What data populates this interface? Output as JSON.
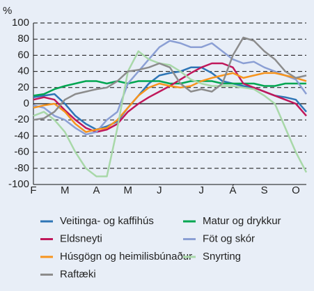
{
  "chart_data": {
    "type": "line",
    "y_unit": "%",
    "categories": [
      "F",
      null,
      null,
      "M",
      null,
      null,
      "A",
      null,
      null,
      "M",
      null,
      null,
      "J",
      null,
      null,
      null,
      "J",
      null,
      null,
      "Á",
      null,
      null,
      "S",
      null,
      null,
      "O",
      null
    ],
    "series": [
      {
        "name": "Veitinga- og kaffihús",
        "color": "#2e75b6",
        "values": [
          8,
          10,
          12,
          0,
          -15,
          -25,
          -32,
          -28,
          -22,
          -5,
          10,
          25,
          35,
          38,
          40,
          45,
          45,
          38,
          28,
          25,
          22,
          20,
          15,
          10,
          8,
          5,
          -10
        ]
      },
      {
        "name": "Matur og drykkur",
        "color": "#00a651",
        "values": [
          10,
          12,
          18,
          22,
          25,
          28,
          28,
          25,
          28,
          25,
          28,
          28,
          28,
          25,
          25,
          28,
          28,
          28,
          25,
          25,
          25,
          25,
          22,
          22,
          25,
          25,
          25
        ]
      },
      {
        "name": "Eldsneyti",
        "color": "#c0175a",
        "values": [
          5,
          8,
          5,
          -8,
          -20,
          -30,
          -35,
          -32,
          -25,
          -10,
          0,
          8,
          15,
          22,
          30,
          38,
          45,
          50,
          50,
          45,
          25,
          20,
          15,
          10,
          5,
          0,
          -15
        ]
      },
      {
        "name": "Föt og skór",
        "color": "#8b9fd4",
        "values": [
          -2,
          -5,
          -15,
          -20,
          -30,
          -38,
          -35,
          -20,
          -10,
          25,
          40,
          55,
          70,
          78,
          75,
          70,
          70,
          75,
          65,
          55,
          50,
          52,
          45,
          40,
          35,
          30,
          12
        ]
      },
      {
        "name": "Húsgögn og heimilisbúnaður",
        "color": "#f7941d",
        "values": [
          -5,
          -2,
          0,
          -10,
          -25,
          -35,
          -32,
          -30,
          -20,
          -5,
          10,
          20,
          25,
          22,
          20,
          22,
          28,
          32,
          35,
          38,
          32,
          35,
          38,
          38,
          35,
          32,
          28
        ]
      },
      {
        "name": "Snyrting",
        "color": "#a8d8a8",
        "values": [
          -15,
          -10,
          -20,
          -35,
          -60,
          -80,
          -90,
          -90,
          -30,
          40,
          65,
          55,
          50,
          48,
          40,
          30,
          25,
          22,
          22,
          22,
          20,
          18,
          10,
          0,
          -30,
          -60,
          -85
        ]
      },
      {
        "name": "Raftæki",
        "color": "#8c8c8c",
        "values": [
          -20,
          -18,
          -10,
          5,
          12,
          15,
          18,
          20,
          28,
          40,
          42,
          45,
          50,
          45,
          25,
          15,
          18,
          15,
          25,
          60,
          82,
          78,
          65,
          55,
          40,
          32,
          35
        ]
      }
    ],
    "ylim": [
      -100,
      100
    ],
    "yticks": [
      -100,
      -80,
      -60,
      -40,
      -20,
      0,
      20,
      40,
      60,
      80,
      100
    ],
    "grid": true
  }
}
